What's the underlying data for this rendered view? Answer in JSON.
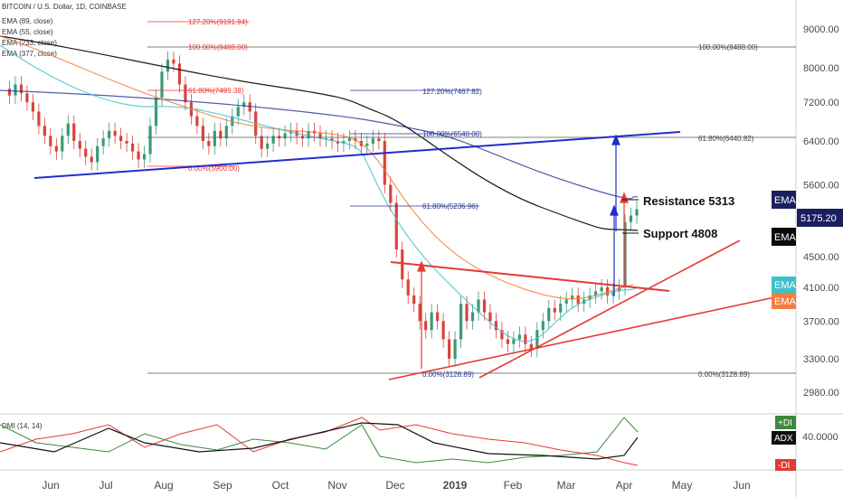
{
  "header": {
    "symbol": "BITCOIN / U.S. Dollar, 1D, COINBASE",
    "indicators": [
      "EMA (89, close)",
      "EMA (55, close)",
      "EMA (233, close)",
      "EMA (377, close)"
    ]
  },
  "dmi_label": "DMI (14, 14)",
  "chart_data": {
    "type": "line",
    "price_axis": {
      "ticks": [
        2980,
        3300,
        3700,
        4100,
        4500,
        4800,
        5200,
        5600,
        6400,
        7200,
        8000,
        9000
      ],
      "tick_labels": [
        "2980.00",
        "3300.00",
        "3700.00",
        "4100.00",
        "4500.00",
        "",
        "",
        "5600.00",
        "6400.00",
        "7200.00",
        "8000.00",
        "9000.00"
      ],
      "current": "5175.20"
    },
    "x_axis": {
      "labels": [
        "Jun",
        "Jul",
        "Aug",
        "Sep",
        "Oct",
        "Nov",
        "Dec",
        "2019",
        "Feb",
        "Mar",
        "Apr",
        "May",
        "Jun"
      ]
    },
    "fib_levels": [
      {
        "label": "127.20%(9191.94)",
        "price": 9191.94,
        "color": "#e53935"
      },
      {
        "label": "100.00%(8488.00)",
        "price": 8488.0,
        "color": "#e53935"
      },
      {
        "label": "61.80%(7499.38)",
        "price": 7499.38,
        "color": "#e53935"
      },
      {
        "label": "0.00%(5900.00)",
        "price": 5900.0,
        "color": "#e53935"
      },
      {
        "label": "127.20%(7467.82)",
        "price": 7467.82,
        "color": "#283593"
      },
      {
        "label": "100.00%(6540.00)",
        "price": 6540.0,
        "color": "#283593"
      },
      {
        "label": "61.80%(5236.96)",
        "price": 5236.96,
        "color": "#283593"
      },
      {
        "label": "0.00%(3128.89)",
        "price": 3128.89,
        "color": "#283593"
      },
      {
        "label": "100.00%(8488.00)",
        "price": 8488.0,
        "color": "#444"
      },
      {
        "label": "61.80%(6440.82)",
        "price": 6440.82,
        "color": "#444"
      },
      {
        "label": "0.00%(3128.89)",
        "price": 3128.89,
        "color": "#444"
      }
    ],
    "annotations": {
      "resistance": "Resistance 5313",
      "support": "Support 4808"
    },
    "ema_badges": [
      "EMA",
      "EMA",
      "EMA",
      "EMA"
    ],
    "dmi": {
      "tick": "40.0000",
      "labels": [
        "+DI",
        "ADX",
        "-DI"
      ]
    },
    "close_series": [
      7500,
      7350,
      7600,
      7400,
      7200,
      7000,
      6700,
      6500,
      6300,
      6200,
      6500,
      6750,
      6400,
      6250,
      6100,
      6000,
      6300,
      6450,
      6600,
      6500,
      6400,
      6350,
      6200,
      6050,
      6150,
      6700,
      7300,
      7900,
      8200,
      8100,
      7600,
      7200,
      6900,
      6700,
      6400,
      6300,
      6600,
      6450,
      6700,
      6900,
      7100,
      7200,
      7000,
      6500,
      6250,
      6350,
      6500,
      6450,
      6550,
      6600,
      6500,
      6450,
      6600,
      6550,
      6450,
      6450,
      6400,
      6350,
      6400,
      6450,
      6400,
      6300,
      6350,
      6450,
      6400,
      5600,
      5300,
      4600,
      4200,
      4000,
      3900,
      3700,
      3600,
      3800,
      3700,
      3500,
      3300,
      3500,
      3900,
      3700,
      3800,
      3950,
      3800,
      3700,
      3600,
      3500,
      3450,
      3500,
      3550,
      3450,
      3400,
      3600,
      3700,
      3850,
      3800,
      3900,
      3950,
      4000,
      3900,
      3950,
      4000,
      4050,
      4100,
      4000,
      4050,
      4100,
      5000,
      5100,
      5200
    ]
  },
  "colors": {
    "red": "#e53935",
    "blue": "#1f2fc8",
    "badge_navy": "#1b1f5e",
    "badge_black": "#0b0b0b",
    "badge_teal": "#3ec0c9",
    "badge_orange": "#f47c3c",
    "green_di": "#3a8a3a"
  }
}
